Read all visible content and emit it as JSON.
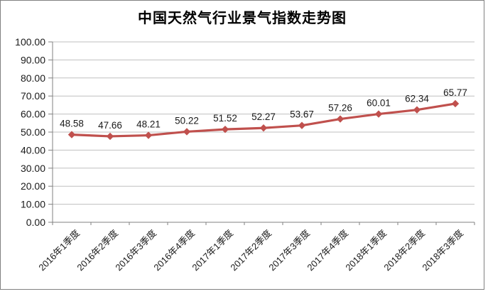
{
  "chart_data": {
    "type": "line",
    "title": "中国天然气行业景气指数走势图",
    "xlabel": "",
    "ylabel": "",
    "legend": "none",
    "grid": true,
    "marker": "diamond",
    "ylim": [
      0,
      100
    ],
    "categories": [
      "2016年1季度",
      "2016年2季度",
      "2016年3季度",
      "2016年4季度",
      "2017年1季度",
      "2017年2季度",
      "2017年3季度",
      "2017年4季度",
      "2018年1季度",
      "2018年2季度",
      "2018年3季度"
    ],
    "values": [
      48.58,
      47.66,
      48.21,
      50.22,
      51.52,
      52.27,
      53.67,
      57.26,
      60.01,
      62.34,
      65.77
    ],
    "data_labels": [
      "48.58",
      "47.66",
      "48.21",
      "50.22",
      "51.52",
      "52.27",
      "53.67",
      "57.26",
      "60.01",
      "62.34",
      "65.77"
    ],
    "yticks": {
      "values": [
        0,
        10,
        20,
        30,
        40,
        50,
        60,
        70,
        80,
        90,
        100
      ],
      "labels": [
        "0.00",
        "10.00",
        "20.00",
        "30.00",
        "40.00",
        "50.00",
        "60.00",
        "70.00",
        "80.00",
        "90.00",
        "100.00"
      ]
    },
    "colors": {
      "series": "#C0504D",
      "grid": "#BFBFBF",
      "axis": "#808080",
      "tick_label": "#1A1A1A",
      "data_label": "#1A1A1A",
      "title": "#000000",
      "frame_border": "#808080",
      "background": "#FFFFFF"
    }
  }
}
